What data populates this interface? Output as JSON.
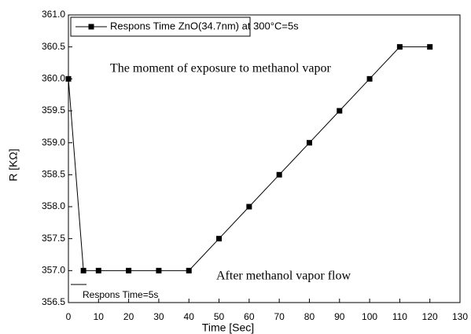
{
  "chart_data": {
    "type": "line",
    "xlabel": "Time [Sec]",
    "ylabel": "R  [KΩ]",
    "x": [
      0,
      5,
      10,
      20,
      30,
      40,
      50,
      60,
      70,
      80,
      90,
      100,
      110,
      120
    ],
    "series": [
      {
        "name": "Respons Time ZnO(34.7nm) at 300°C=5s",
        "color": "#000000",
        "values": [
          360,
          357,
          357,
          357,
          357,
          357,
          357.5,
          358,
          358.5,
          359,
          359.5,
          360,
          360.5,
          360.5
        ]
      }
    ],
    "xlim": [
      0,
      130
    ],
    "xticks": [
      0,
      10,
      20,
      30,
      40,
      50,
      60,
      70,
      80,
      90,
      100,
      110,
      120,
      130
    ],
    "ylim": [
      356.5,
      361
    ],
    "yticks": [
      356.5,
      {
        "value": 357,
        "label": "357.0"
      },
      357.5,
      {
        "value": 358,
        "label": "358.0"
      },
      358.5,
      {
        "value": 359,
        "label": "359.0"
      },
      359.5,
      {
        "value": 360,
        "label": "360.0"
      },
      360.5,
      {
        "value": 361,
        "label": "361.0"
      }
    ],
    "annotations": [
      "The moment of exposure to methanol vapor",
      "After methanol vapor flow",
      "Respons Time=5s"
    ],
    "legend": "upper left",
    "grid": false
  }
}
